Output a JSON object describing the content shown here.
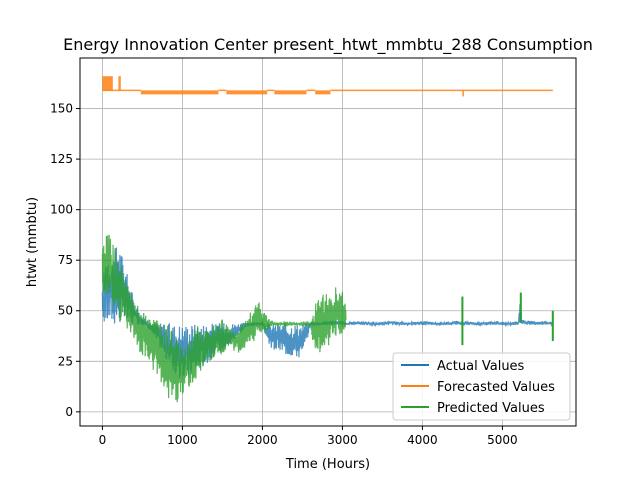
{
  "chart_data": {
    "type": "line",
    "title": "Energy Innovation Center present_htwt_mmbtu_288 Consumption",
    "xlabel": "Time (Hours)",
    "ylabel": "htwt (mmbtu)",
    "xlim": [
      -280,
      5920
    ],
    "ylim": [
      -7,
      175
    ],
    "xticks": [
      0,
      1000,
      2000,
      3000,
      4000,
      5000
    ],
    "yticks": [
      0,
      25,
      50,
      75,
      100,
      125,
      150
    ],
    "grid": true,
    "legend": {
      "placement": "lower-right",
      "entries": [
        "Actual Values",
        "Forecasted Values",
        "Predicted Values"
      ]
    },
    "colors": {
      "actual": "#1f77b4",
      "forecast": "#ff7f0e",
      "predicted": "#2ca02c"
    },
    "series": [
      {
        "name": "Actual Values",
        "x": [
          0,
          30,
          60,
          100,
          150,
          200,
          300,
          400,
          500,
          600,
          700,
          800,
          900,
          1000,
          1100,
          1200,
          1300,
          1400,
          1500,
          1600,
          1700,
          1800,
          1900,
          2000,
          2100,
          2200,
          2300,
          2400,
          2500,
          2600,
          2700,
          2800,
          2900,
          3000,
          3050,
          3200,
          3400,
          3600,
          3800,
          4000,
          4200,
          4400,
          4500,
          4520,
          4540,
          4700,
          4900,
          5100,
          5200,
          5230,
          5240,
          5300,
          5400,
          5500,
          5600,
          5630
        ],
        "upper": [
          60,
          75,
          82,
          78,
          80,
          86,
          70,
          55,
          47,
          44,
          44,
          44,
          44,
          44,
          44,
          44,
          44,
          44,
          44,
          44,
          44,
          44,
          44,
          44,
          44,
          44,
          44,
          44,
          44,
          44,
          44,
          45,
          45,
          45,
          44,
          45,
          44,
          45,
          44,
          45,
          44,
          45,
          45,
          44,
          45,
          44,
          45,
          44,
          45,
          60,
          46,
          45,
          45,
          45,
          45,
          44
        ],
        "lower": [
          43,
          43,
          43,
          43,
          43,
          43,
          43,
          43,
          43,
          40,
          33,
          25,
          18,
          15,
          17,
          20,
          24,
          27,
          30,
          33,
          38,
          42,
          43,
          43,
          30,
          30,
          28,
          27,
          26,
          43,
          43,
          43,
          43,
          43,
          43,
          43,
          43,
          43,
          43,
          43,
          43,
          43,
          43,
          43,
          43,
          43,
          43,
          43,
          43,
          43,
          43,
          43,
          43,
          43,
          43,
          43
        ]
      },
      {
        "name": "Forecasted Values",
        "segments": [
          {
            "x": [
              0,
              480
            ],
            "y": [
              159,
              159
            ]
          },
          {
            "x": [
              480,
              1450
            ],
            "y": [
              157,
              159
            ]
          },
          {
            "x": [
              1450,
              1550
            ],
            "y": [
              159,
              159
            ]
          },
          {
            "x": [
              1550,
              2060
            ],
            "y": [
              157,
              159
            ]
          },
          {
            "x": [
              2060,
              2150
            ],
            "y": [
              159,
              159
            ]
          },
          {
            "x": [
              2150,
              2550
            ],
            "y": [
              157,
              159
            ]
          },
          {
            "x": [
              2550,
              2660
            ],
            "y": [
              159,
              159
            ]
          },
          {
            "x": [
              2660,
              2850
            ],
            "y": [
              157,
              159
            ]
          },
          {
            "x": [
              2850,
              5630
            ],
            "y": [
              159,
              159
            ]
          }
        ],
        "spikes": [
          {
            "x": [
              0,
              130
            ],
            "y": [
              159,
              166
            ]
          },
          {
            "x": [
              200,
              230
            ],
            "y": [
              159,
              166
            ]
          },
          {
            "x": [
              4500,
              4510
            ],
            "y": [
              156,
              159
            ]
          }
        ]
      },
      {
        "name": "Predicted Values",
        "x": [
          0,
          50,
          100,
          150,
          200,
          250,
          300,
          350,
          400,
          450,
          500,
          550,
          600,
          650,
          700,
          750,
          800,
          850,
          900,
          950,
          1000,
          1050,
          1100,
          1150,
          1200,
          1250,
          1300,
          1350,
          1400,
          1450,
          1500,
          1550,
          1600,
          1650,
          1700,
          1750,
          1800,
          1850,
          1900,
          1950,
          2000,
          2050,
          2100,
          2150,
          2200,
          2250,
          2300,
          2350,
          2400,
          2450,
          2500,
          2550,
          2600,
          2650,
          2700,
          2750,
          2800,
          2850,
          2900,
          2950,
          3000,
          3050
        ],
        "upper": [
          80,
          89,
          88,
          82,
          78,
          70,
          65,
          60,
          55,
          52,
          50,
          48,
          47,
          46,
          45,
          44,
          43,
          42,
          40,
          36,
          32,
          34,
          38,
          40,
          44,
          43,
          43,
          43,
          43,
          44,
          46,
          44,
          42,
          40,
          41,
          44,
          48,
          50,
          52,
          55,
          50,
          48,
          46,
          44,
          44,
          44,
          44,
          44,
          44,
          44,
          44,
          44,
          44,
          55,
          57,
          58,
          60,
          61,
          62,
          63,
          62,
          55
        ],
        "lower": [
          55,
          58,
          55,
          50,
          45,
          42,
          40,
          38,
          36,
          30,
          28,
          25,
          22,
          20,
          17,
          12,
          7,
          3,
          1,
          5,
          8,
          10,
          12,
          15,
          18,
          20,
          22,
          25,
          26,
          27,
          28,
          30,
          31,
          30,
          29,
          31,
          32,
          34,
          35,
          37,
          38,
          40,
          42,
          43,
          43,
          43,
          43,
          43,
          43,
          43,
          43,
          43,
          43,
          28,
          29,
          30,
          32,
          33,
          34,
          36,
          38,
          42
        ]
      }
    ],
    "predicted_spikes": [
      {
        "x": 4500,
        "y": [
          33,
          57
        ]
      },
      {
        "x": 5230,
        "y": [
          44,
          59
        ]
      },
      {
        "x": 5630,
        "y": [
          35,
          50
        ]
      }
    ]
  }
}
